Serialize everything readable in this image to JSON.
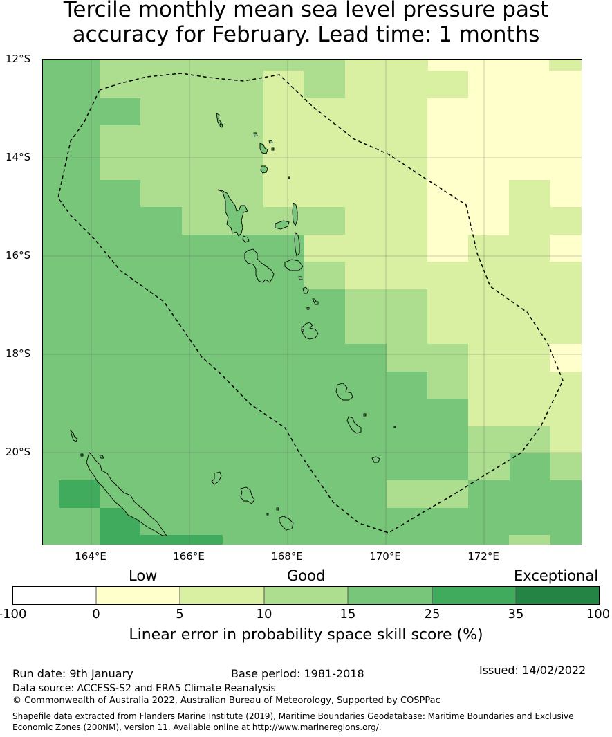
{
  "title_line1": "Tercile monthly mean sea level pressure past",
  "title_line2": "accuracy for February. Lead time: 1 months",
  "map": {
    "lat_labels": [
      "12°S",
      "14°S",
      "16°S",
      "18°S",
      "20°S"
    ],
    "lon_labels": [
      "164°E",
      "166°E",
      "168°E",
      "170°E",
      "172°E"
    ],
    "region": "Vanuatu EEZ",
    "colors": {
      "c0": "#ffffff",
      "c1": "#ffffcc",
      "c2": "#d9f0a3",
      "c3": "#addd8e",
      "c4": "#78c679",
      "c5": "#41ab5d",
      "c6": "#238443"
    }
  },
  "colorbar": {
    "category_labels": [
      "Low",
      "Good",
      "Exceptional"
    ],
    "ticks": [
      "-100",
      "0",
      "5",
      "10",
      "15",
      "25",
      "35",
      "100"
    ],
    "label": "Linear error in probability space skill score (%)"
  },
  "footer": {
    "run_date": "Run date: 9th January",
    "base_period": "Base period: 1981-2018",
    "issued": "Issued: 14/02/2022",
    "data_source": "Data source: ACCESS-S2 and ERA5 Climate Reanalysis",
    "copyright": "© Commonwealth of Australia 2022, Australian Bureau of Meteorology, Supported by COSPPac",
    "shapefile_line1": "Shapefile data extracted from Flanders Marine Institute (2019), Maritime Boundaries Geodatabase: Maritime Boundaries and Exclusive",
    "shapefile_line2": "Economic Zones (200NM), version 11. Available online at http://www.marineregions.org/."
  }
}
